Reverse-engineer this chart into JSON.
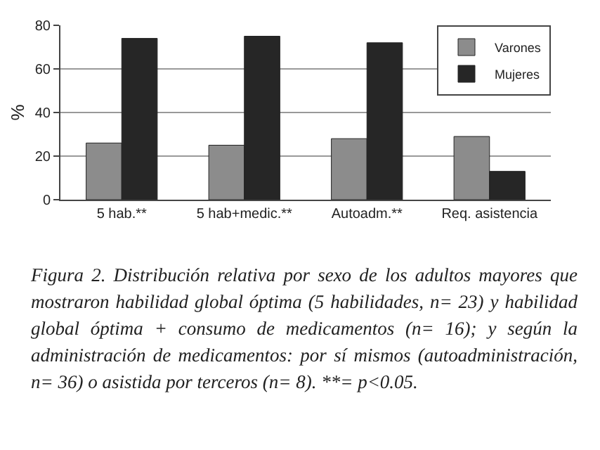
{
  "chart_data": {
    "type": "bar",
    "ylabel": "%",
    "categories": [
      "5 hab.**",
      "5 hab+medic.**",
      "Autoadm.**",
      "Req. asistencia"
    ],
    "series": [
      {
        "name": "Varones",
        "color": "#8c8c8c",
        "values": [
          26,
          25,
          28,
          29
        ]
      },
      {
        "name": "Mujeres",
        "color": "#262626",
        "values": [
          74,
          75,
          72,
          13
        ]
      }
    ],
    "ylim": [
      0,
      80
    ],
    "yticks": [
      0,
      20,
      40,
      60,
      80
    ],
    "grid": "y",
    "legend": "top right",
    "annotations": [
      "Figura 2. Distribución relativa por sexo de los adultos mayores que mostraron habilidad global óptima (5 habilidades, n= 23) y habilidad global óptima + consumo de medicamentos (n= 16); y según la administración de medicamentos: por sí mismos (autoadministración, n= 36) o asistida por terceros (n= 8). **= p<0.05."
    ]
  }
}
